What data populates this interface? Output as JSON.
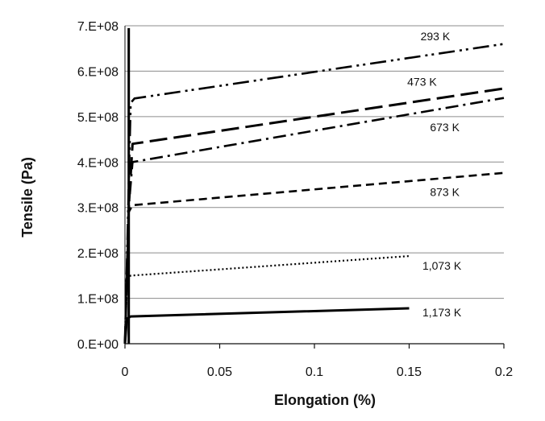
{
  "chart_data": {
    "type": "line",
    "title": "",
    "xlabel": "Elongation (%)",
    "ylabel": "Tensile (Pa)",
    "xlim": [
      0,
      0.2
    ],
    "ylim": [
      0,
      700000000
    ],
    "grid": "horizontal",
    "x_ticks": [
      {
        "value": 0,
        "label": "0"
      },
      {
        "value": 0.05,
        "label": "0.05"
      },
      {
        "value": 0.1,
        "label": "0.1"
      },
      {
        "value": 0.15,
        "label": "0.15"
      },
      {
        "value": 0.2,
        "label": "0.2"
      }
    ],
    "y_ticks": [
      {
        "value": 0,
        "label": "0.E+00"
      },
      {
        "value": 100000000,
        "label": "1.E+08"
      },
      {
        "value": 200000000,
        "label": "2.E+08"
      },
      {
        "value": 300000000,
        "label": "3.E+08"
      },
      {
        "value": 400000000,
        "label": "4.E+08"
      },
      {
        "value": 500000000,
        "label": "5.E+08"
      },
      {
        "value": 600000000,
        "label": "6.E+08"
      },
      {
        "value": 700000000,
        "label": "7.E+08"
      }
    ],
    "series": [
      {
        "name": "293 K",
        "dash": "dash-dot-dot",
        "x": [
          0,
          0.003,
          0.005,
          0.2
        ],
        "y": [
          0,
          530000000,
          540000000,
          660000000
        ],
        "label_at": {
          "x": 0.156,
          "y": 668000000
        }
      },
      {
        "name": "473 K",
        "dash": "long-dash",
        "x": [
          0,
          0.002,
          0.004,
          0.2
        ],
        "y": [
          0,
          300000000,
          440000000,
          562000000
        ],
        "label_at": {
          "x": 0.149,
          "y": 568000000
        }
      },
      {
        "name": "673 K",
        "dash": "dash-dot",
        "x": [
          0,
          0.002,
          0.004,
          0.2
        ],
        "y": [
          0,
          300000000,
          400000000,
          541000000
        ],
        "label_at": {
          "x": 0.161,
          "y": 468000000
        }
      },
      {
        "name": "873 K",
        "dash": "dash",
        "x": [
          0,
          0.002,
          0.004,
          0.2
        ],
        "y": [
          0,
          290000000,
          305000000,
          376000000
        ],
        "label_at": {
          "x": 0.161,
          "y": 325000000
        }
      },
      {
        "name": "1,073 K",
        "dash": "dot",
        "x": [
          0,
          0.001,
          0.003,
          0.15
        ],
        "y": [
          0,
          140000000,
          150000000,
          193000000
        ],
        "label_at": {
          "x": 0.157,
          "y": 163000000
        }
      },
      {
        "name": "1,173 K",
        "dash": "solid",
        "x": [
          0,
          0.001,
          0.003,
          0.15
        ],
        "y": [
          0,
          55000000,
          60000000,
          78000000
        ],
        "label_at": {
          "x": 0.157,
          "y": 60000000
        }
      }
    ],
    "annotations": [
      {
        "type": "thick-initial-segment",
        "x": [
          0.002,
          0.002
        ],
        "y": [
          0,
          695000000
        ]
      }
    ]
  }
}
